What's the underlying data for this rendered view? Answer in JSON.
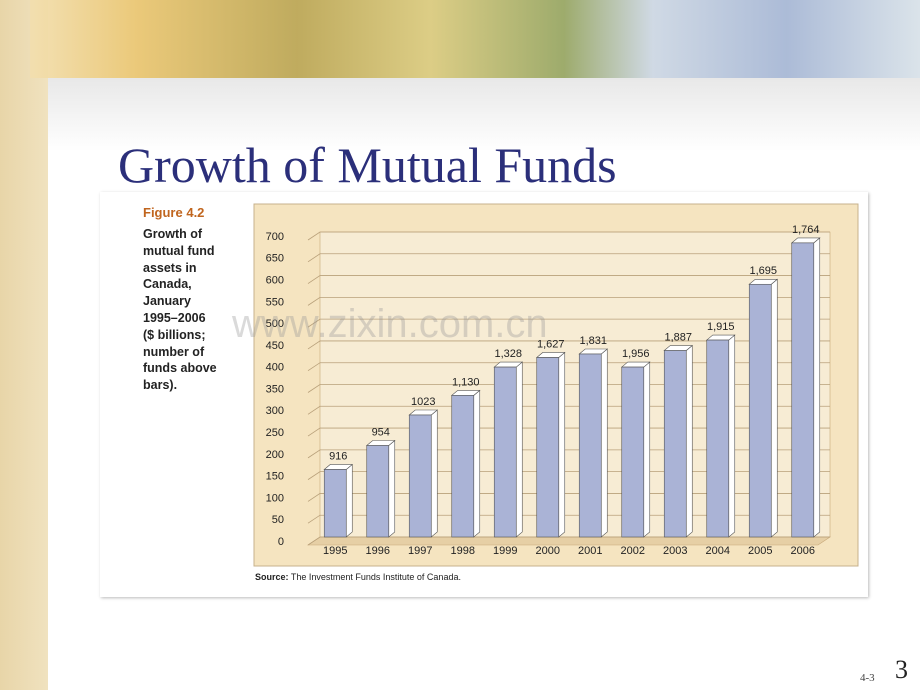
{
  "slide": {
    "title": "Growth of Mutual Funds",
    "figure_label": "Figure 4.2",
    "caption_lines": [
      "Growth of",
      "mutual fund",
      "assets in",
      "Canada,",
      "January",
      "1995–2006",
      "($ billions;",
      "number of",
      "funds above",
      "bars)."
    ],
    "source_label": "Source:",
    "source_text": "The Investment Funds Institute of Canada.",
    "watermark": "www.zixin.com.cn",
    "footer_code": "4-3",
    "page_number": "3"
  },
  "chart_data": {
    "type": "bar",
    "categories": [
      "1995",
      "1996",
      "1997",
      "1998",
      "1999",
      "2000",
      "2001",
      "2002",
      "2003",
      "2004",
      "2005",
      "2006"
    ],
    "values": [
      155,
      210,
      280,
      325,
      390,
      412,
      420,
      390,
      428,
      452,
      580,
      675
    ],
    "bar_labels": [
      "916",
      "954",
      "1023",
      "1,130",
      "1,328",
      "1,627",
      "1,831",
      "1,956",
      "1,887",
      "1,915",
      "1,695",
      "1,764"
    ],
    "color": "#aab3d6",
    "ylim": [
      0,
      700
    ],
    "yticks": [
      0,
      50,
      100,
      150,
      200,
      250,
      300,
      350,
      400,
      450,
      500,
      550,
      600,
      650,
      700
    ],
    "grid": true
  }
}
